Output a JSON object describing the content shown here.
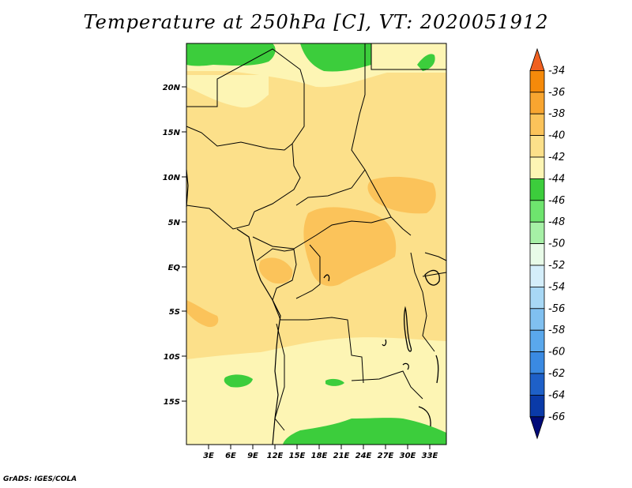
{
  "title": "Temperature at 250hPa [C], VT: 2020051912",
  "footer": "GrADS: IGES/COLA",
  "map": {
    "lon_labels": [
      "3E",
      "6E",
      "9E",
      "12E",
      "15E",
      "18E",
      "21E",
      "24E",
      "27E",
      "30E",
      "33E"
    ],
    "lat_labels": [
      "20N",
      "15N",
      "10N",
      "5N",
      "EQ",
      "5S",
      "10S",
      "15S"
    ],
    "region": "Central Africa"
  },
  "colorbar": {
    "levels": [
      "-34",
      "-36",
      "-38",
      "-40",
      "-42",
      "-44",
      "-46",
      "-48",
      "-50",
      "-52",
      "-54",
      "-56",
      "-58",
      "-60",
      "-62",
      "-64",
      "-66"
    ],
    "colors": [
      "#f06020",
      "#f58a0a",
      "#f8a530",
      "#fbc35a",
      "#fce08a",
      "#fdf5b4",
      "#3ccd3c",
      "#6ee46e",
      "#a6f0a6",
      "#e8fbe8",
      "#d4eefa",
      "#a8d8f5",
      "#80c0f0",
      "#5aa8ec",
      "#3a8ae2",
      "#1e60c8",
      "#0a3aa8",
      "#000a78"
    ]
  },
  "palette": {
    "ocean_fill": "#fbd97a",
    "land_fill": "#fce08a",
    "warm_patch": "#fbc35a",
    "cool_fill": "#fdf5b4",
    "green_fill": "#3ccd3c"
  }
}
